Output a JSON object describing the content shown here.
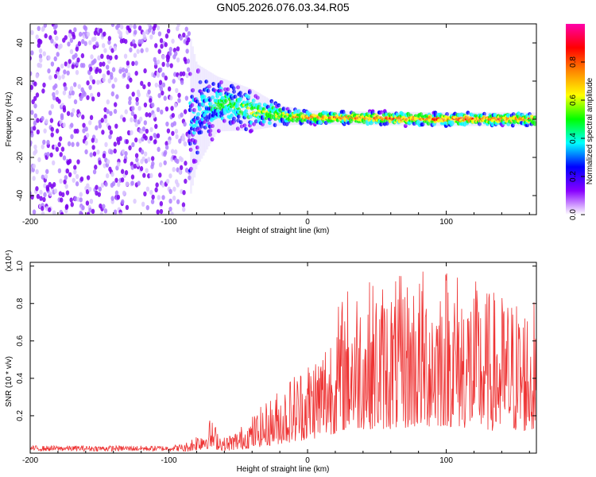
{
  "title": "GN05.2026.076.03.34.R05",
  "chart_data": [
    {
      "type": "heatmap",
      "name": "spectrogram",
      "xlabel": "Height of straight line (km)",
      "ylabel": "Frequency (Hz)",
      "xlim": [
        -200,
        165
      ],
      "ylim": [
        -50,
        50
      ],
      "xticks": [
        -200,
        -100,
        0,
        100
      ],
      "yticks": [
        40,
        20,
        0,
        -20,
        -40
      ],
      "colorbar": {
        "label": "Normalized spectral amplitude",
        "range": [
          0,
          1
        ],
        "ticks": [
          "0.0",
          "0.2",
          "0.4",
          "0.6",
          "0.8"
        ],
        "colors": [
          "#ffffff",
          "#8800ff",
          "#0000ff",
          "#00ffff",
          "#00ff00",
          "#ffff00",
          "#ff8800",
          "#ff0000",
          "#ff00aa"
        ]
      },
      "description_points": [
        {
          "height_km": -200,
          "center_hz": 0,
          "spread_hz": 50,
          "amplitude": 0.15
        },
        {
          "height_km": -100,
          "center_hz": 0,
          "spread_hz": 50,
          "amplitude": 0.15
        },
        {
          "height_km": -80,
          "center_hz": 2,
          "spread_hz": 15,
          "amplitude": 0.3
        },
        {
          "height_km": -65,
          "center_hz": 8,
          "spread_hz": 8,
          "amplitude": 0.45
        },
        {
          "height_km": -40,
          "center_hz": 5,
          "spread_hz": 6,
          "amplitude": 0.55
        },
        {
          "height_km": -20,
          "center_hz": 2,
          "spread_hz": 3,
          "amplitude": 0.6
        },
        {
          "height_km": 0,
          "center_hz": 1,
          "spread_hz": 2,
          "amplitude": 0.75
        },
        {
          "height_km": 100,
          "center_hz": 0,
          "spread_hz": 2,
          "amplitude": 0.8
        },
        {
          "height_km": 165,
          "center_hz": 0,
          "spread_hz": 2,
          "amplitude": 0.75
        }
      ]
    },
    {
      "type": "line",
      "name": "snr",
      "xlabel": "Height of straight line (km)",
      "ylabel": "SNR (10 * v/v)",
      "y_multiplier": "(x10⁴)",
      "xlim": [
        -200,
        165
      ],
      "ylim": [
        0,
        1.02
      ],
      "xticks": [
        -200,
        -100,
        0,
        100
      ],
      "yticks": [
        "0.2",
        "0.4",
        "0.6",
        "0.8",
        "1.0"
      ],
      "color": "#ee3333",
      "envelope": [
        {
          "x": -200,
          "y": 0.03
        },
        {
          "x": -100,
          "y": 0.03
        },
        {
          "x": -90,
          "y": 0.04
        },
        {
          "x": -80,
          "y": 0.1
        },
        {
          "x": -70,
          "y": 0.17
        },
        {
          "x": -60,
          "y": 0.08
        },
        {
          "x": -50,
          "y": 0.12
        },
        {
          "x": -30,
          "y": 0.25
        },
        {
          "x": -10,
          "y": 0.4
        },
        {
          "x": 10,
          "y": 0.55
        },
        {
          "x": 30,
          "y": 0.85
        },
        {
          "x": 60,
          "y": 0.85
        },
        {
          "x": 100,
          "y": 0.95
        },
        {
          "x": 130,
          "y": 0.8
        },
        {
          "x": 165,
          "y": 0.75
        }
      ]
    }
  ]
}
